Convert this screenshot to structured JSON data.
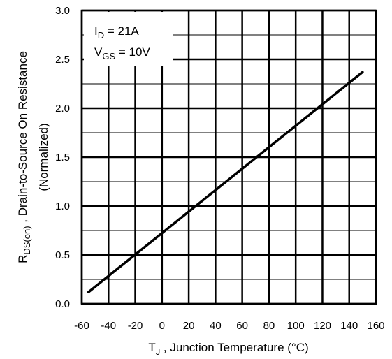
{
  "chart_data": {
    "type": "line",
    "title": "",
    "x_axis": {
      "label_main": "T",
      "label_sub": "J",
      "label_rest": " , Junction Temperature (°C)",
      "range": [
        -60,
        160
      ],
      "ticks": [
        -60,
        -40,
        -20,
        0,
        20,
        40,
        60,
        80,
        100,
        120,
        140,
        160
      ]
    },
    "y_axis": {
      "label_main": "R",
      "label_sub": "DS(on)",
      "label_rest": " , Drain-to-Source On Resistance",
      "label_line2": "(Normalized)",
      "range": [
        0,
        3.0
      ],
      "ticks": [
        0.0,
        0.5,
        1.0,
        1.5,
        2.0,
        2.5,
        3.0
      ],
      "tick_labels": [
        "0.0",
        "0.5",
        "1.0",
        "1.5",
        "2.0",
        "2.5",
        "3.0"
      ]
    },
    "grid": true,
    "series": [
      {
        "x": [
          -55,
          150
        ],
        "y": [
          0.12,
          2.37
        ],
        "color": "#000000"
      }
    ],
    "annotations": [
      {
        "main": "I",
        "sub": "D",
        "rest": " = 21A"
      },
      {
        "main": "V",
        "sub": "GS",
        "rest": " = 10V"
      }
    ]
  }
}
